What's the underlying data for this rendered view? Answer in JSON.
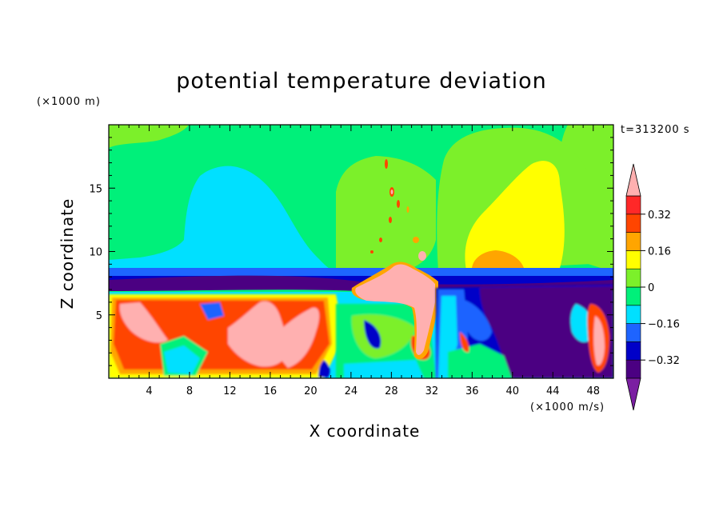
{
  "chart_data": {
    "type": "heatmap",
    "title": "potential temperature deviation",
    "xlabel": "X coordinate",
    "ylabel": "Z coordinate",
    "x_unit": "(×1000 m/s)",
    "z_unit": "(×1000 m)",
    "time_label": "t=313200 s",
    "xlim": [
      0,
      50
    ],
    "ylim": [
      0,
      20
    ],
    "x_ticks": [
      4,
      8,
      12,
      16,
      20,
      24,
      28,
      32,
      36,
      40,
      44,
      48
    ],
    "x_tick_labels": [
      "4",
      "8",
      "12",
      "16",
      "20",
      "24",
      "28",
      "32",
      "36",
      "40",
      "44",
      "48"
    ],
    "y_ticks": [
      5,
      10,
      15
    ],
    "y_tick_labels": [
      "5",
      "10",
      "15"
    ],
    "colorbar": {
      "levels": [
        -0.4,
        -0.32,
        -0.24,
        -0.16,
        -0.08,
        0,
        0.08,
        0.16,
        0.24,
        0.32,
        0.4
      ],
      "tick_values": [
        -0.32,
        -0.16,
        0,
        0.16,
        0.32
      ],
      "tick_labels": [
        "−0.32",
        "−0.16",
        "0",
        "0.16",
        "0.32"
      ],
      "colors": [
        "#7b1fa2",
        "#4b0082",
        "#0000c8",
        "#1e64ff",
        "#00e0ff",
        "#00f07a",
        "#7cf02a",
        "#ffff00",
        "#ffa500",
        "#ff4500",
        "#ff2828",
        "#ffb0b0"
      ],
      "extend": "both"
    },
    "features": [
      {
        "name": "upper-left cool plume",
        "x": [
          7,
          21
        ],
        "z": [
          9.5,
          16.5
        ],
        "value": -0.12
      },
      {
        "name": "upper-right warm plume",
        "x": [
          36,
          48
        ],
        "z": [
          9,
          17
        ],
        "value": 0.14
      },
      {
        "name": "upper-right warm core",
        "x": [
          36.5,
          41
        ],
        "z": [
          8.5,
          10.5
        ],
        "value": 0.22
      },
      {
        "name": "inversion cold layer",
        "x": [
          0,
          50
        ],
        "z": [
          7,
          8.2
        ],
        "value": -0.3
      },
      {
        "name": "lower-left warm cells",
        "x": [
          0,
          22
        ],
        "z": [
          0.5,
          7
        ],
        "value": 0.36
      },
      {
        "name": "central warm intrusion",
        "x": [
          24.5,
          32
        ],
        "z": [
          1.5,
          9
        ],
        "value": 0.4
      },
      {
        "name": "lower-right cold pool",
        "x": [
          35,
          48
        ],
        "z": [
          0.2,
          7
        ],
        "value": -0.38
      },
      {
        "name": "right edge warm cell",
        "x": [
          47,
          50
        ],
        "z": [
          0.5,
          5
        ],
        "value": 0.4
      }
    ]
  }
}
